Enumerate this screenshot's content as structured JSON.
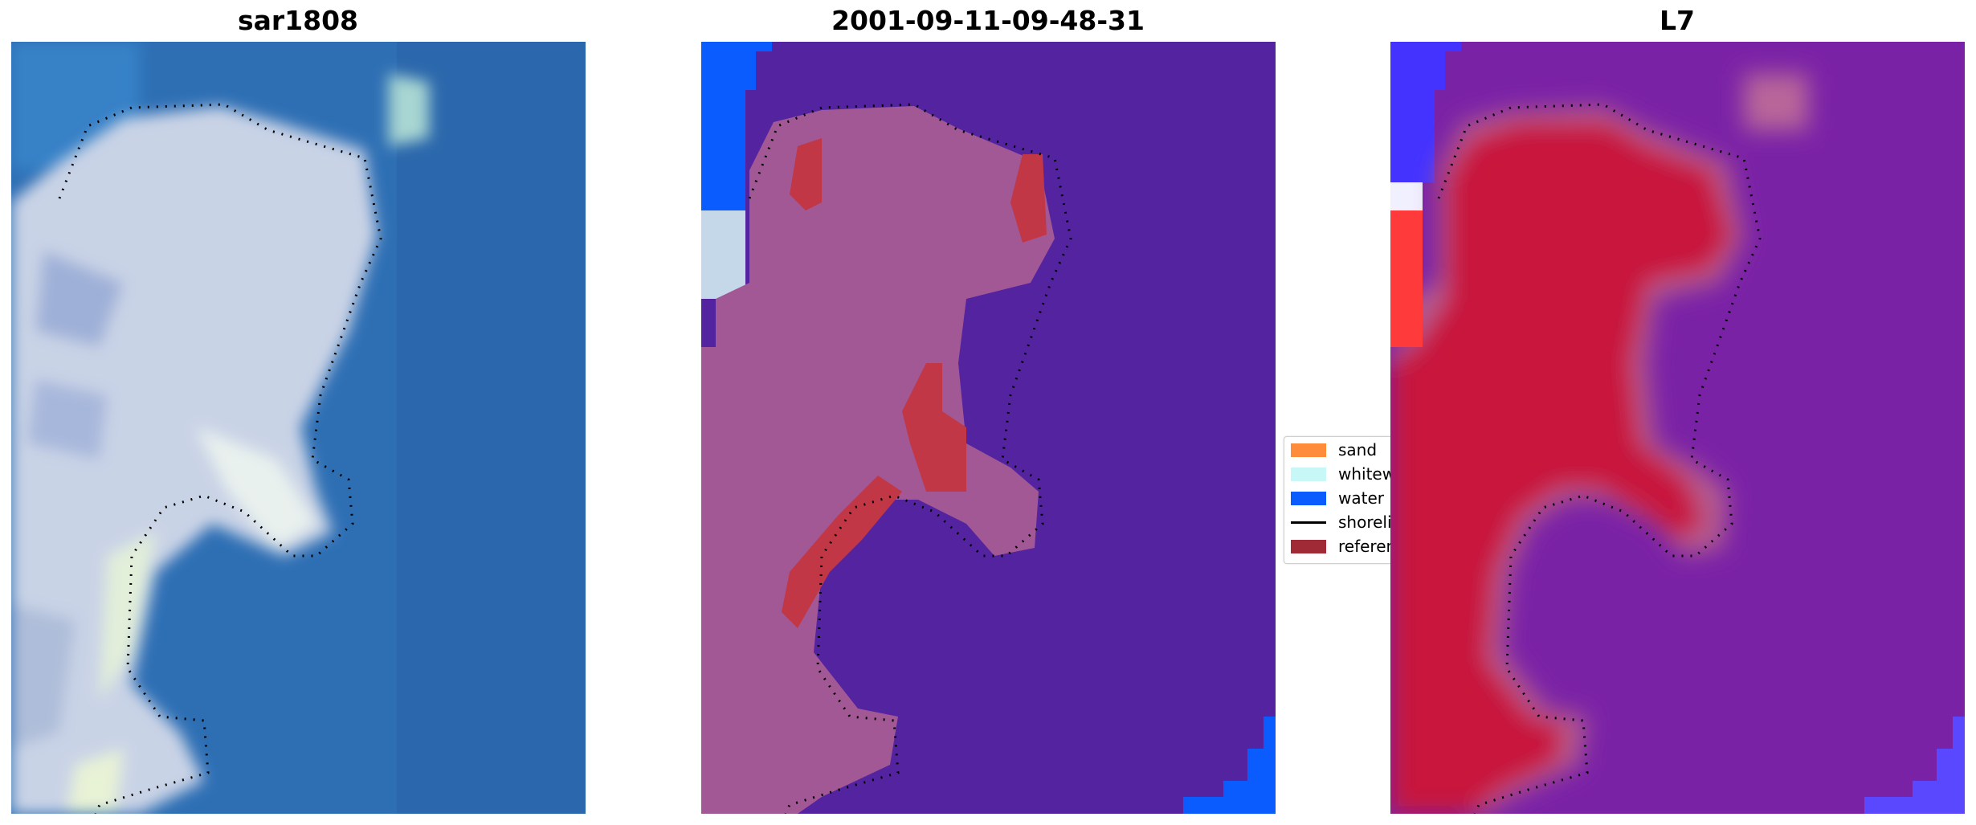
{
  "panels": [
    {
      "title": "sar1808"
    },
    {
      "title": "2001-09-11-09-48-31"
    },
    {
      "title": "L7"
    }
  ],
  "legend": {
    "items": [
      {
        "label": "sand",
        "color": "#ff8c3a"
      },
      {
        "label": "whitewater",
        "color": "#c8f7f7"
      },
      {
        "label": "water",
        "color": "#0a5cff"
      },
      {
        "label": "shoreline",
        "color": "#000000"
      },
      {
        "label": "reference",
        "color": "#a02a36"
      }
    ]
  },
  "colors": {
    "rgb_water": "#2e6fb4",
    "rgb_land": "#c9d3e6",
    "class_water": "#5423a0",
    "class_land": "#a15895",
    "class_reference": "#c13746",
    "class_water_edge": "#0a5cff",
    "mndwi_low": "#c8113c",
    "mndwi_high": "#7a22a6"
  }
}
